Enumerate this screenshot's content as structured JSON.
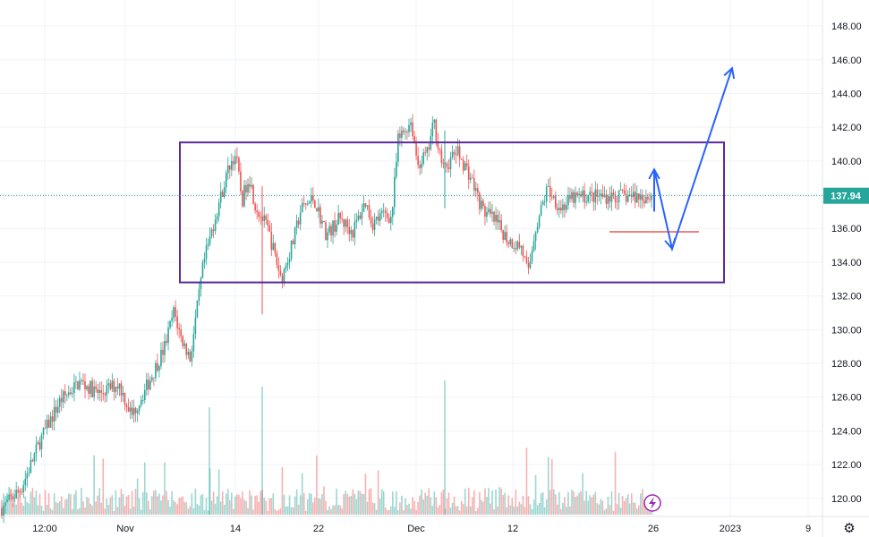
{
  "chart_data": {
    "type": "candlestick",
    "y_axis": {
      "position": "right",
      "ticks": [
        "120.00",
        "122.00",
        "124.00",
        "126.00",
        "128.00",
        "130.00",
        "132.00",
        "134.00",
        "136.00",
        "138.00",
        "140.00",
        "142.00",
        "144.00",
        "146.00",
        "148.00"
      ],
      "range": [
        119.3,
        148.8
      ]
    },
    "x_axis": {
      "ticks": [
        "12:00",
        "Nov",
        "14",
        "22",
        "Dec",
        "12",
        "26",
        "2023",
        "9"
      ]
    },
    "last_price": {
      "label": "137.94",
      "value": 137.94,
      "color": "#26a69a"
    },
    "colors": {
      "up": "#26a69a",
      "down": "#ef5350",
      "range_box": "#5b2a9c",
      "projection": "#2962ff",
      "marker": "#e53935"
    },
    "price_path": [
      [
        0,
        119.4
      ],
      [
        0.03,
        120.6
      ],
      [
        0.06,
        123.5
      ],
      [
        0.09,
        125.8
      ],
      [
        0.12,
        126.9
      ],
      [
        0.15,
        126.2
      ],
      [
        0.18,
        126.8
      ],
      [
        0.2,
        124.9
      ],
      [
        0.22,
        126.4
      ],
      [
        0.23,
        127.2
      ],
      [
        0.25,
        128.9
      ],
      [
        0.265,
        131.1
      ],
      [
        0.275,
        129.6
      ],
      [
        0.29,
        128.3
      ],
      [
        0.31,
        133.8
      ],
      [
        0.33,
        136.9
      ],
      [
        0.35,
        139.7
      ],
      [
        0.36,
        140.4
      ],
      [
        0.37,
        137.6
      ],
      [
        0.38,
        139.2
      ],
      [
        0.39,
        137.4
      ],
      [
        0.41,
        135.9
      ],
      [
        0.43,
        133.0
      ],
      [
        0.45,
        135.4
      ],
      [
        0.46,
        137.1
      ],
      [
        0.48,
        137.8
      ],
      [
        0.5,
        135.6
      ],
      [
        0.52,
        136.6
      ],
      [
        0.54,
        135.8
      ],
      [
        0.56,
        137.6
      ],
      [
        0.57,
        136.3
      ],
      [
        0.59,
        136.9
      ],
      [
        0.6,
        136.6
      ],
      [
        0.61,
        141.2
      ],
      [
        0.63,
        142.4
      ],
      [
        0.64,
        139.8
      ],
      [
        0.655,
        140.4
      ],
      [
        0.665,
        142.3
      ],
      [
        0.68,
        139.4
      ],
      [
        0.7,
        140.6
      ],
      [
        0.72,
        139.2
      ],
      [
        0.74,
        137.1
      ],
      [
        0.76,
        136.4
      ],
      [
        0.78,
        135.3
      ],
      [
        0.8,
        134.9
      ],
      [
        0.81,
        133.2
      ],
      [
        0.82,
        135.8
      ],
      [
        0.84,
        138.4
      ],
      [
        0.86,
        137.2
      ],
      [
        0.88,
        137.8
      ],
      [
        0.9,
        137.9
      ]
    ],
    "range_box": {
      "low": 132.8,
      "high": 141.1
    },
    "marker_level": 135.8,
    "projection": [
      [
        0,
        137.0
      ],
      [
        0,
        139.5
      ],
      [
        0,
        134.8
      ],
      [
        0,
        145.5
      ]
    ]
  }
}
